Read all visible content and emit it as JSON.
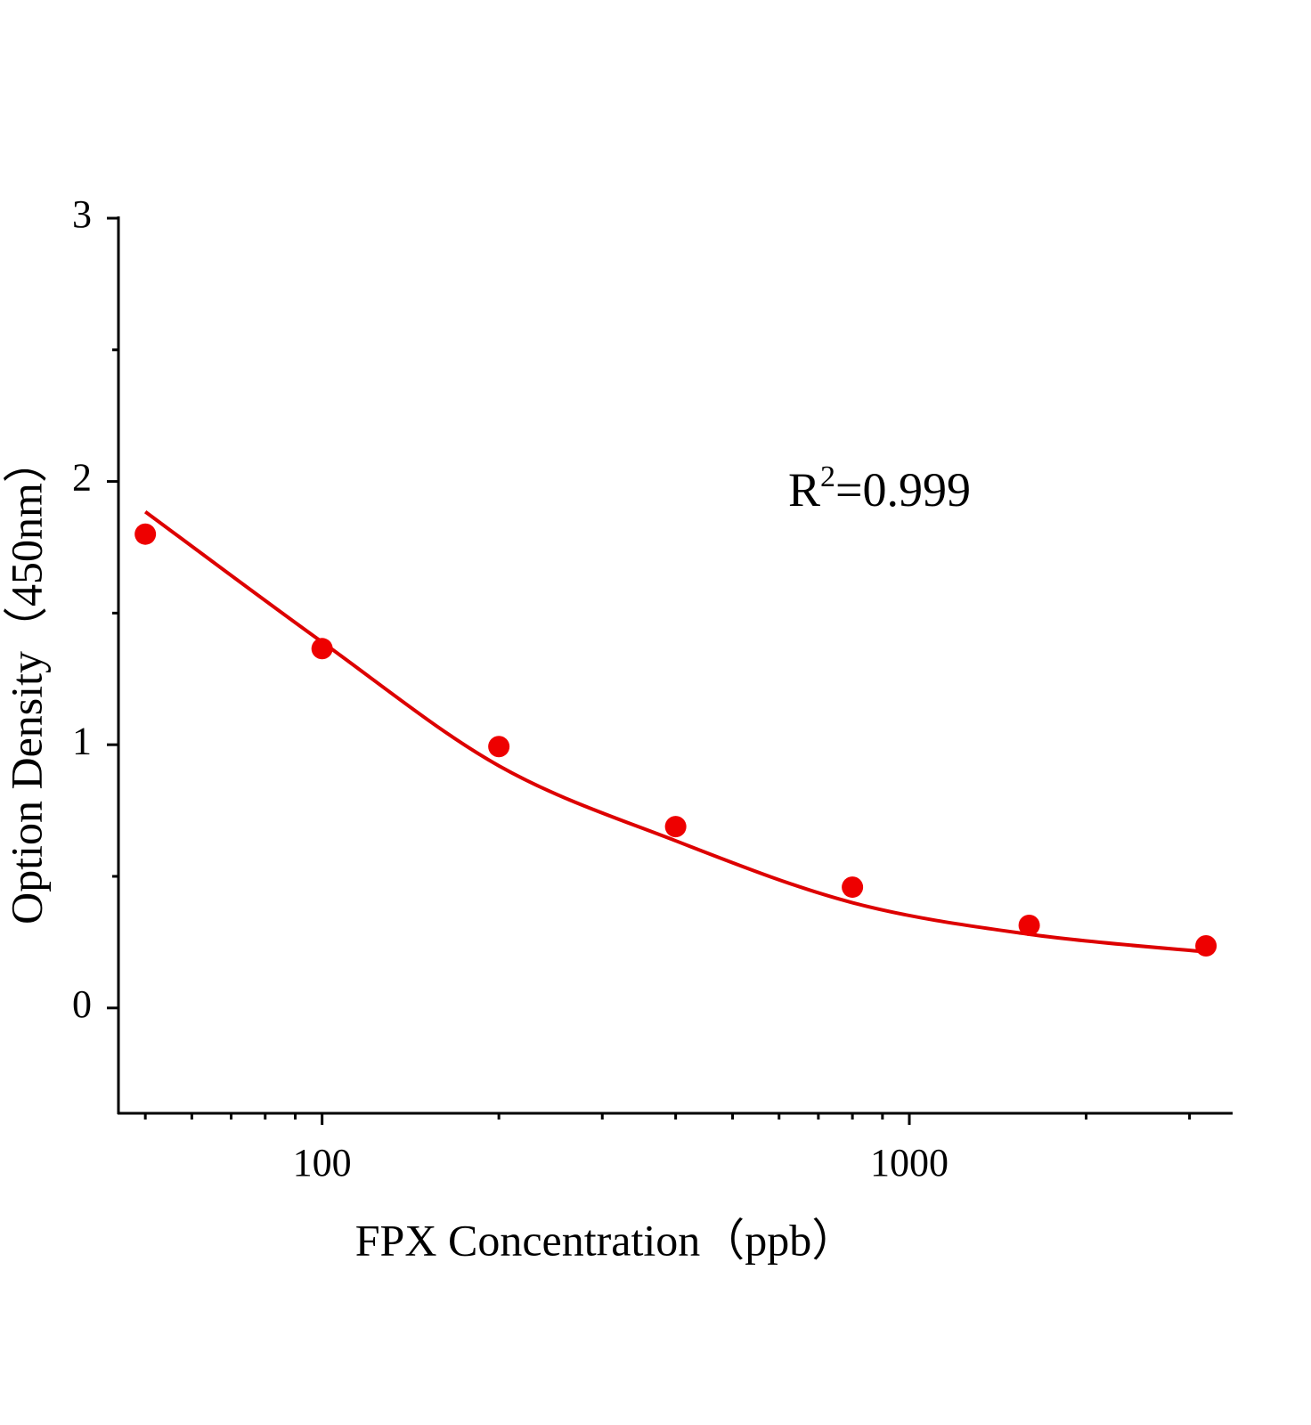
{
  "chart_data": {
    "type": "scatter",
    "xlabel": "FPX  Concentration（ppb）",
    "ylabel": "Option Density（450nm）",
    "annotation": [
      "R",
      "2",
      "=0.999"
    ],
    "x": [
      50,
      100,
      200,
      400,
      800,
      1600,
      3200
    ],
    "series": [
      {
        "kind": "scatter",
        "color": "#ee0000",
        "values": [
          1.8,
          1.365,
          0.993,
          0.689,
          0.459,
          0.314,
          0.236
        ]
      },
      {
        "kind": "line",
        "color": "#dd0000",
        "values": [
          1.885,
          1.39,
          0.92,
          0.635,
          0.4,
          0.28,
          0.213
        ]
      }
    ],
    "xscale": "log",
    "xlim": [
      45,
      3540
    ],
    "ylim": [
      -0.4,
      3
    ],
    "xticks": [
      100,
      1000
    ],
    "xminorticks": [
      50,
      60,
      70,
      80,
      90,
      200,
      300,
      400,
      500,
      600,
      700,
      800,
      900,
      2000,
      3000
    ],
    "yticks": [
      0,
      1,
      2,
      3
    ],
    "yminorticks": [
      0.5,
      1.5,
      2.5
    ]
  }
}
